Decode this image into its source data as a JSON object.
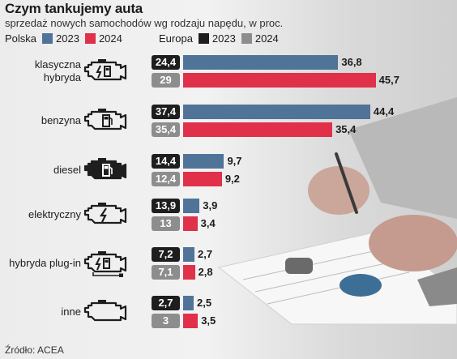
{
  "header": {
    "title": "Czym tankujemy auta",
    "subtitle": "sprzedaż nowych samochodów wg rodzaju napędu, w proc."
  },
  "legend": {
    "poland_label": "Polska",
    "europe_label": "Europa",
    "year_2023": "2023",
    "year_2024": "2024"
  },
  "colors": {
    "poland_2023": "#4f7497",
    "poland_2024": "#e0304a",
    "europe_2023": "#1e1e1e",
    "europe_2024": "#8d8d8d"
  },
  "chart_data": {
    "type": "bar",
    "orientation": "horizontal",
    "title": "Czym tankujemy auta",
    "subtitle": "sprzedaż nowych samochodów wg rodzaju napędu, w proc.",
    "categories": [
      {
        "label": "klasyczna hybryda",
        "icon": "engine-hybrid-icon"
      },
      {
        "label": "benzyna",
        "icon": "engine-fuel-pump-icon"
      },
      {
        "label": "diesel",
        "icon": "engine-diesel-icon"
      },
      {
        "label": "elektryczny",
        "icon": "engine-electric-icon"
      },
      {
        "label": "hybryda plug-in",
        "icon": "engine-plugin-hybrid-icon"
      },
      {
        "label": "inne",
        "icon": "engine-outline-icon"
      }
    ],
    "series": [
      {
        "name": "Polska 2023",
        "color": "#4f7497",
        "values": [
          36.8,
          44.4,
          9.7,
          3.9,
          2.7,
          2.5
        ],
        "labels": [
          "36,8",
          "44,4",
          "9,7",
          "3,9",
          "2,7",
          "2,5"
        ]
      },
      {
        "name": "Polska 2024",
        "color": "#e0304a",
        "values": [
          45.7,
          35.4,
          9.2,
          3.4,
          2.8,
          3.5
        ],
        "labels": [
          "45,7",
          "35,4",
          "9,2",
          "3,4",
          "2,8",
          "3,5"
        ]
      },
      {
        "name": "Europa 2023",
        "color": "#1e1e1e",
        "values": [
          24.4,
          37.4,
          14.4,
          13.9,
          7.2,
          2.7
        ],
        "labels": [
          "24,4",
          "37,4",
          "14,4",
          "13,9",
          "7,2",
          "2,7"
        ]
      },
      {
        "name": "Europa 2024",
        "color": "#8d8d8d",
        "values": [
          29,
          35.4,
          12.4,
          13,
          7.1,
          3
        ],
        "labels": [
          "29",
          "35,4",
          "12,4",
          "13",
          "7,1",
          "3"
        ]
      }
    ],
    "source": "Źródło: ACEA"
  }
}
